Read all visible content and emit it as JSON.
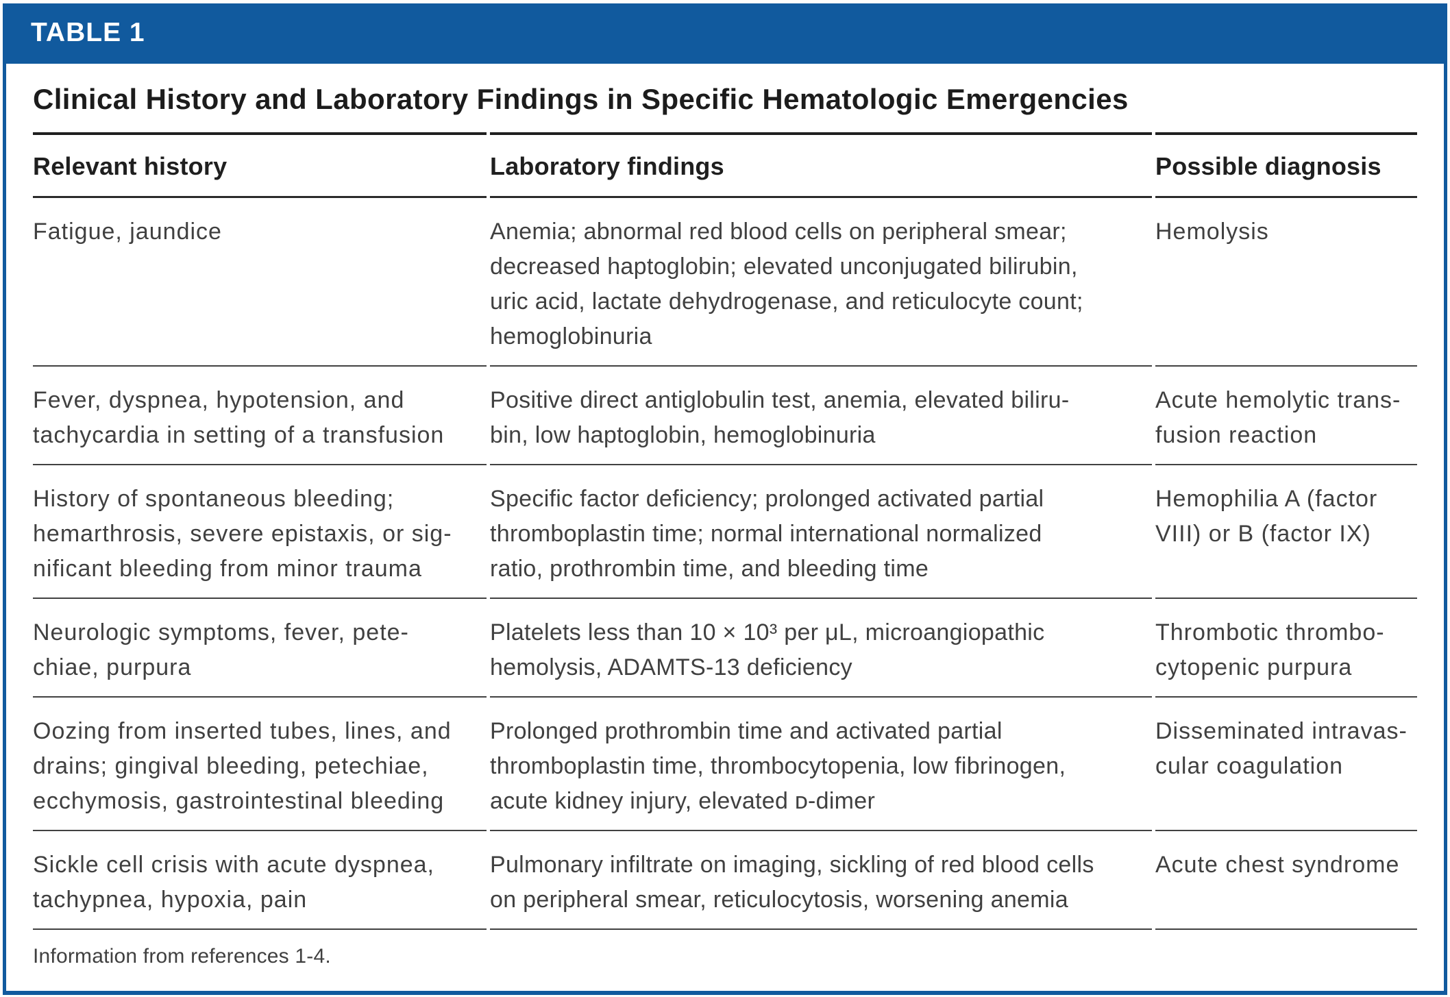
{
  "table_label": "TABLE 1",
  "title": "Clinical History and Laboratory Findings in Specific Hematologic Emergencies",
  "columns": [
    "Relevant history",
    "Laboratory findings",
    "Possible diagnosis"
  ],
  "rows": [
    {
      "history": [
        "Fatigue, jaundice"
      ],
      "labs": [
        "Anemia; abnormal red blood cells on peripheral smear;",
        "decreased haptoglobin; elevated unconjugated bilirubin,",
        "uric acid, lactate dehydrogenase, and reticulocyte count;",
        "hemoglobinuria"
      ],
      "diagnosis": [
        "Hemolysis"
      ]
    },
    {
      "history": [
        "Fever, dyspnea, hypotension, and",
        "tachycardia in setting of a transfusion"
      ],
      "labs": [
        "Positive direct antiglobulin test, anemia, elevated biliru-",
        "bin, low haptoglobin, hemoglobinuria"
      ],
      "diagnosis": [
        "Acute hemolytic trans-",
        "fusion reaction"
      ]
    },
    {
      "history": [
        "History of spontaneous bleeding;",
        "hemarthrosis, severe epistaxis, or sig-",
        "nificant bleeding from minor trauma"
      ],
      "labs": [
        "Specific factor deficiency; prolonged activated partial",
        "thromboplastin time; normal international normalized",
        "ratio, prothrombin time, and bleeding time"
      ],
      "diagnosis": [
        "Hemophilia A (factor",
        "VIII) or B (factor IX)"
      ]
    },
    {
      "history": [
        "Neurologic symptoms, fever, pete-",
        "chiae, purpura"
      ],
      "labs": [
        "Platelets less than 10 × 10³ per μL, microangiopathic",
        "hemolysis, ADAMTS-13 deficiency"
      ],
      "diagnosis": [
        "Thrombotic thrombo-",
        "cytopenic purpura"
      ]
    },
    {
      "history": [
        "Oozing from inserted tubes, lines, and",
        "drains; gingival bleeding, petechiae,",
        "ecchymosis, gastrointestinal bleeding"
      ],
      "labs": [
        "Prolonged prothrombin time and activated partial",
        "thromboplastin time, thrombocytopenia, low fibrinogen,",
        "acute kidney injury, elevated ᴅ-dimer"
      ],
      "diagnosis": [
        "Disseminated intravas-",
        "cular coagulation"
      ]
    },
    {
      "history": [
        "Sickle cell crisis with acute dyspnea,",
        "tachypnea, hypoxia, pain"
      ],
      "labs": [
        "Pulmonary infiltrate on imaging, sickling of red blood cells",
        "on peripheral smear, reticulocytosis, worsening anemia"
      ],
      "diagnosis": [
        "Acute chest syndrome"
      ]
    }
  ],
  "footnote": "Information from references 1-4.",
  "colors": {
    "accent_blue": "#115A9E",
    "rule_dark": "#1F1F1F",
    "body_text": "#404040"
  }
}
